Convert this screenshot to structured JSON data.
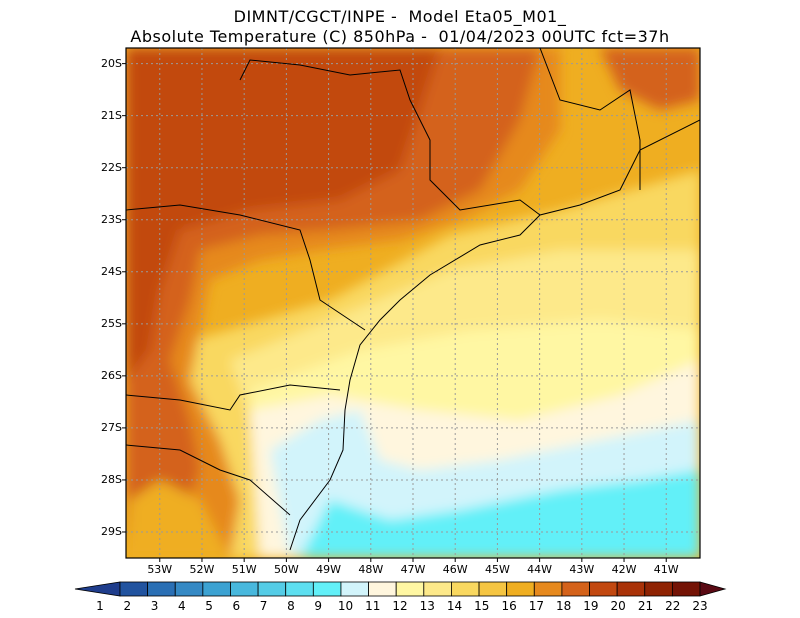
{
  "header": {
    "line1": "DIMNT/CGCT/INPE -  Model Eta05_M01_",
    "line2": "Absolute Temperature (C) 850hPa -  01/04/2023 00UTC fct=37h"
  },
  "map": {
    "lat_labels": [
      "20S",
      "21S",
      "22S",
      "23S",
      "24S",
      "25S",
      "26S",
      "27S",
      "28S",
      "29S"
    ],
    "lon_labels": [
      "53W",
      "52W",
      "51W",
      "50W",
      "49W",
      "48W",
      "47W",
      "46W",
      "45W",
      "44W",
      "43W",
      "42W",
      "41W"
    ],
    "lat_range": [
      -29.5,
      -19.7
    ],
    "lon_range": [
      -53.8,
      -40.2
    ]
  },
  "colorbar": {
    "labels": [
      "1",
      "2",
      "3",
      "4",
      "5",
      "6",
      "7",
      "8",
      "9",
      "10",
      "11",
      "12",
      "13",
      "14",
      "15",
      "16",
      "17",
      "18",
      "19",
      "20",
      "21",
      "22",
      "23"
    ],
    "colors": [
      "#1f3d8c",
      "#21539f",
      "#2a6fb4",
      "#3589c4",
      "#3ca2d2",
      "#48b8dd",
      "#54cce6",
      "#5ddff0",
      "#62f0f8",
      "#d2f4fb",
      "#fff6de",
      "#fff7a3",
      "#fde98a",
      "#f9d860",
      "#f5c542",
      "#efae21",
      "#e6891d",
      "#d4621a",
      "#c24810",
      "#a93208",
      "#8f2303",
      "#741305",
      "#5a0a14"
    ]
  }
}
